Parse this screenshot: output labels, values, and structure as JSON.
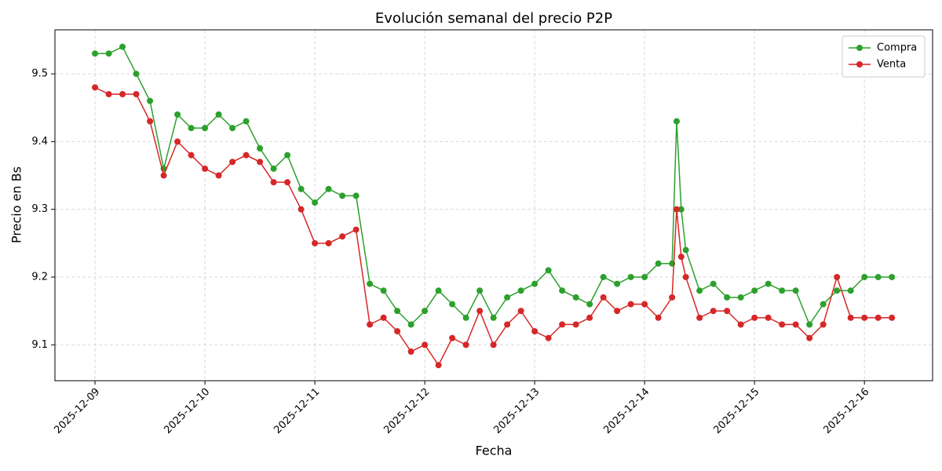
{
  "chart_data": {
    "type": "line",
    "title": "Evolución semanal del precio P2P",
    "xlabel": "Fecha",
    "ylabel": "Precio en Bs",
    "x": [
      "2025-12-09T00:00",
      "2025-12-09T03:00",
      "2025-12-09T06:00",
      "2025-12-09T09:00",
      "2025-12-09T12:00",
      "2025-12-09T15:00",
      "2025-12-09T18:00",
      "2025-12-09T21:00",
      "2025-12-10T00:00",
      "2025-12-10T03:00",
      "2025-12-10T06:00",
      "2025-12-10T09:00",
      "2025-12-10T12:00",
      "2025-12-10T15:00",
      "2025-12-10T18:00",
      "2025-12-10T21:00",
      "2025-12-11T00:00",
      "2025-12-11T03:00",
      "2025-12-11T06:00",
      "2025-12-11T09:00",
      "2025-12-11T12:00",
      "2025-12-11T15:00",
      "2025-12-11T18:00",
      "2025-12-11T21:00",
      "2025-12-12T00:00",
      "2025-12-12T03:00",
      "2025-12-12T06:00",
      "2025-12-12T09:00",
      "2025-12-12T12:00",
      "2025-12-12T15:00",
      "2025-12-12T18:00",
      "2025-12-12T21:00",
      "2025-12-13T00:00",
      "2025-12-13T03:00",
      "2025-12-13T06:00",
      "2025-12-13T09:00",
      "2025-12-13T12:00",
      "2025-12-13T15:00",
      "2025-12-13T18:00",
      "2025-12-13T21:00",
      "2025-12-14T00:00",
      "2025-12-14T03:00",
      "2025-12-14T06:00",
      "2025-12-14T07:00",
      "2025-12-14T08:00",
      "2025-12-14T09:00",
      "2025-12-14T12:00",
      "2025-12-14T15:00",
      "2025-12-14T18:00",
      "2025-12-14T21:00",
      "2025-12-15T00:00",
      "2025-12-15T03:00",
      "2025-12-15T06:00",
      "2025-12-15T09:00",
      "2025-12-15T12:00",
      "2025-12-15T15:00",
      "2025-12-15T18:00",
      "2025-12-15T21:00",
      "2025-12-16T00:00",
      "2025-12-16T03:00",
      "2025-12-16T06:00"
    ],
    "series": [
      {
        "name": "Compra",
        "color": "#2ca02c",
        "values": [
          9.53,
          9.53,
          9.54,
          9.5,
          9.46,
          9.36,
          9.44,
          9.42,
          9.42,
          9.44,
          9.42,
          9.43,
          9.39,
          9.36,
          9.38,
          9.33,
          9.31,
          9.33,
          9.32,
          9.32,
          9.19,
          9.18,
          9.15,
          9.13,
          9.15,
          9.18,
          9.16,
          9.14,
          9.18,
          9.14,
          9.17,
          9.18,
          9.19,
          9.21,
          9.18,
          9.17,
          9.16,
          9.2,
          9.19,
          9.2,
          9.2,
          9.22,
          9.22,
          9.43,
          9.3,
          9.24,
          9.18,
          9.19,
          9.17,
          9.17,
          9.18,
          9.19,
          9.18,
          9.18,
          9.13,
          9.16,
          9.18,
          9.18,
          9.2,
          9.2,
          9.2
        ]
      },
      {
        "name": "Venta",
        "color": "#d62728",
        "values": [
          9.48,
          9.47,
          9.47,
          9.47,
          9.43,
          9.35,
          9.4,
          9.38,
          9.36,
          9.35,
          9.37,
          9.38,
          9.37,
          9.34,
          9.34,
          9.3,
          9.25,
          9.25,
          9.26,
          9.27,
          9.13,
          9.14,
          9.12,
          9.09,
          9.1,
          9.07,
          9.11,
          9.1,
          9.15,
          9.1,
          9.13,
          9.15,
          9.12,
          9.11,
          9.13,
          9.13,
          9.14,
          9.17,
          9.15,
          9.16,
          9.16,
          9.14,
          9.17,
          9.3,
          9.23,
          9.2,
          9.14,
          9.15,
          9.15,
          9.13,
          9.14,
          9.14,
          9.13,
          9.13,
          9.11,
          9.13,
          9.2,
          9.14,
          9.14,
          9.14,
          9.14
        ]
      }
    ],
    "xlim": [
      "2025-12-08T15:15",
      "2025-12-16T14:53"
    ],
    "xticks": [
      "2025-12-09",
      "2025-12-10",
      "2025-12-11",
      "2025-12-12",
      "2025-12-13",
      "2025-12-14",
      "2025-12-15",
      "2025-12-16"
    ],
    "ylim": [
      9.047,
      9.565
    ],
    "yticks": [
      9.1,
      9.2,
      9.3,
      9.4,
      9.5
    ],
    "grid": true,
    "legend": "upper right",
    "markers": true
  }
}
